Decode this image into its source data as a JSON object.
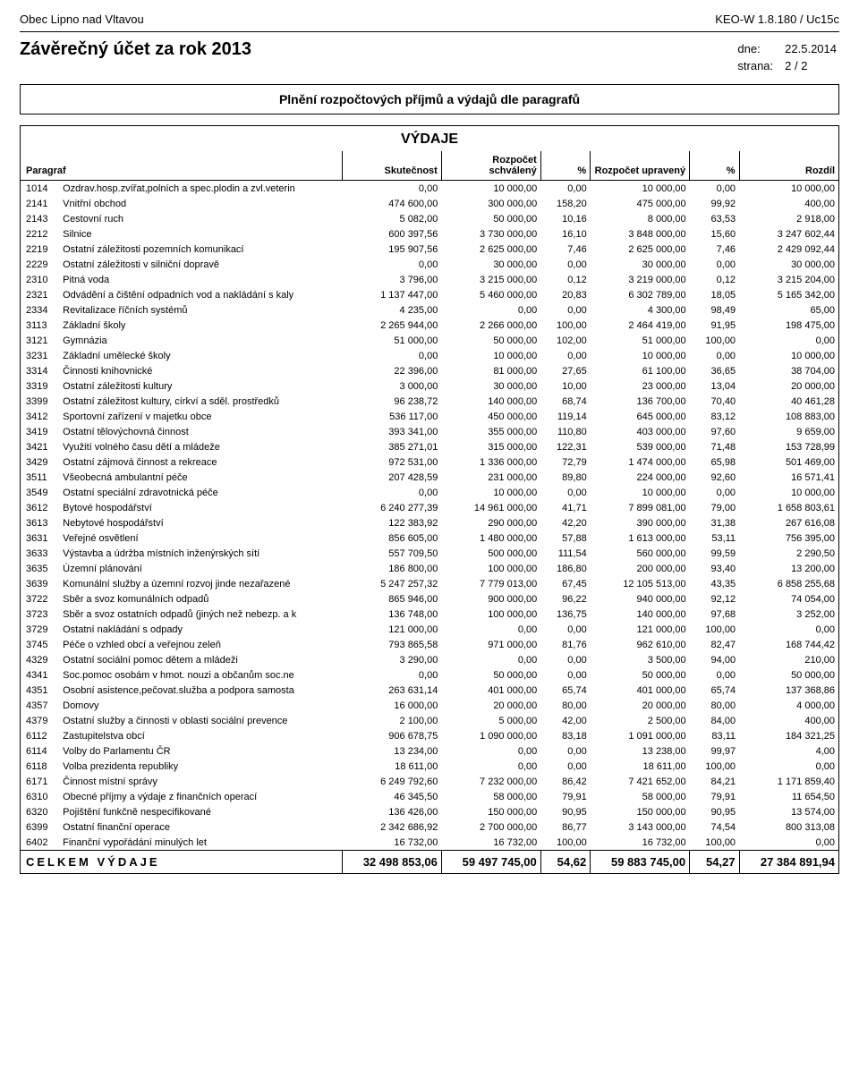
{
  "header": {
    "municipality": "Obec Lipno nad Vltavou",
    "system": "KEO-W 1.8.180 / Uc15c",
    "title": "Závěrečný účet za rok 2013",
    "date_label": "dne:",
    "date_value": "22.5.2014",
    "page_label": "strana:",
    "page_value": "2 / 2"
  },
  "section_title": "Plnění rozpočtových příjmů a výdajů dle paragrafů",
  "vydaje_title": "VÝDAJE",
  "columns": {
    "paragraf": "Paragraf",
    "skutecnost": "Skutečnost",
    "schvaleny": "Rozpočet schválený",
    "pct1": "%",
    "upraveny": "Rozpočet upravený",
    "pct2": "%",
    "rozdil": "Rozdíl"
  },
  "rows": [
    {
      "code": "1014",
      "label": "Ozdrav.hosp.zvířat,polních a spec.plodin a zvl.veterin",
      "skut": "0,00",
      "schv": "10 000,00",
      "pct1": "0,00",
      "upr": "10 000,00",
      "pct2": "0,00",
      "rozd": "10 000,00"
    },
    {
      "code": "2141",
      "label": "Vnitřní obchod",
      "skut": "474 600,00",
      "schv": "300 000,00",
      "pct1": "158,20",
      "upr": "475 000,00",
      "pct2": "99,92",
      "rozd": "400,00"
    },
    {
      "code": "2143",
      "label": "Cestovní ruch",
      "skut": "5 082,00",
      "schv": "50 000,00",
      "pct1": "10,16",
      "upr": "8 000,00",
      "pct2": "63,53",
      "rozd": "2 918,00"
    },
    {
      "code": "2212",
      "label": "Silnice",
      "skut": "600 397,56",
      "schv": "3 730 000,00",
      "pct1": "16,10",
      "upr": "3 848 000,00",
      "pct2": "15,60",
      "rozd": "3 247 602,44"
    },
    {
      "code": "2219",
      "label": "Ostatní záležitosti pozemních komunikací",
      "skut": "195 907,56",
      "schv": "2 625 000,00",
      "pct1": "7,46",
      "upr": "2 625 000,00",
      "pct2": "7,46",
      "rozd": "2 429 092,44"
    },
    {
      "code": "2229",
      "label": "Ostatní záležitosti v silniční dopravě",
      "skut": "0,00",
      "schv": "30 000,00",
      "pct1": "0,00",
      "upr": "30 000,00",
      "pct2": "0,00",
      "rozd": "30 000,00"
    },
    {
      "code": "2310",
      "label": "Pitná voda",
      "skut": "3 796,00",
      "schv": "3 215 000,00",
      "pct1": "0,12",
      "upr": "3 219 000,00",
      "pct2": "0,12",
      "rozd": "3 215 204,00"
    },
    {
      "code": "2321",
      "label": "Odvádění a čištění odpadních vod a nakládání s kaly",
      "skut": "1 137 447,00",
      "schv": "5 460 000,00",
      "pct1": "20,83",
      "upr": "6 302 789,00",
      "pct2": "18,05",
      "rozd": "5 165 342,00"
    },
    {
      "code": "2334",
      "label": "Revitalizace říčních systémů",
      "skut": "4 235,00",
      "schv": "0,00",
      "pct1": "0,00",
      "upr": "4 300,00",
      "pct2": "98,49",
      "rozd": "65,00"
    },
    {
      "code": "3113",
      "label": "Základní školy",
      "skut": "2 265 944,00",
      "schv": "2 266 000,00",
      "pct1": "100,00",
      "upr": "2 464 419,00",
      "pct2": "91,95",
      "rozd": "198 475,00"
    },
    {
      "code": "3121",
      "label": "Gymnázia",
      "skut": "51 000,00",
      "schv": "50 000,00",
      "pct1": "102,00",
      "upr": "51 000,00",
      "pct2": "100,00",
      "rozd": "0,00"
    },
    {
      "code": "3231",
      "label": "Základní umělecké školy",
      "skut": "0,00",
      "schv": "10 000,00",
      "pct1": "0,00",
      "upr": "10 000,00",
      "pct2": "0,00",
      "rozd": "10 000,00"
    },
    {
      "code": "3314",
      "label": "Činnosti knihovnické",
      "skut": "22 396,00",
      "schv": "81 000,00",
      "pct1": "27,65",
      "upr": "61 100,00",
      "pct2": "36,65",
      "rozd": "38 704,00"
    },
    {
      "code": "3319",
      "label": "Ostatní záležitosti kultury",
      "skut": "3 000,00",
      "schv": "30 000,00",
      "pct1": "10,00",
      "upr": "23 000,00",
      "pct2": "13,04",
      "rozd": "20 000,00"
    },
    {
      "code": "3399",
      "label": "Ostatní záležitost kultury, církví a sděl. prostředků",
      "skut": "96 238,72",
      "schv": "140 000,00",
      "pct1": "68,74",
      "upr": "136 700,00",
      "pct2": "70,40",
      "rozd": "40 461,28"
    },
    {
      "code": "3412",
      "label": "Sportovní zařízení v majetku obce",
      "skut": "536 117,00",
      "schv": "450 000,00",
      "pct1": "119,14",
      "upr": "645 000,00",
      "pct2": "83,12",
      "rozd": "108 883,00"
    },
    {
      "code": "3419",
      "label": "Ostatní tělovýchovná činnost",
      "skut": "393 341,00",
      "schv": "355 000,00",
      "pct1": "110,80",
      "upr": "403 000,00",
      "pct2": "97,60",
      "rozd": "9 659,00"
    },
    {
      "code": "3421",
      "label": "Využití volného času dětí a mládeže",
      "skut": "385 271,01",
      "schv": "315 000,00",
      "pct1": "122,31",
      "upr": "539 000,00",
      "pct2": "71,48",
      "rozd": "153 728,99"
    },
    {
      "code": "3429",
      "label": "Ostatní zájmová činnost a rekreace",
      "skut": "972 531,00",
      "schv": "1 336 000,00",
      "pct1": "72,79",
      "upr": "1 474 000,00",
      "pct2": "65,98",
      "rozd": "501 469,00"
    },
    {
      "code": "3511",
      "label": "Všeobecná ambulantní péče",
      "skut": "207 428,59",
      "schv": "231 000,00",
      "pct1": "89,80",
      "upr": "224 000,00",
      "pct2": "92,60",
      "rozd": "16 571,41"
    },
    {
      "code": "3549",
      "label": "Ostatní speciální zdravotnická péče",
      "skut": "0,00",
      "schv": "10 000,00",
      "pct1": "0,00",
      "upr": "10 000,00",
      "pct2": "0,00",
      "rozd": "10 000,00"
    },
    {
      "code": "3612",
      "label": "Bytové hospodářství",
      "skut": "6 240 277,39",
      "schv": "14 961 000,00",
      "pct1": "41,71",
      "upr": "7 899 081,00",
      "pct2": "79,00",
      "rozd": "1 658 803,61"
    },
    {
      "code": "3613",
      "label": "Nebytové hospodářství",
      "skut": "122 383,92",
      "schv": "290 000,00",
      "pct1": "42,20",
      "upr": "390 000,00",
      "pct2": "31,38",
      "rozd": "267 616,08"
    },
    {
      "code": "3631",
      "label": "Veřejné osvětlení",
      "skut": "856 605,00",
      "schv": "1 480 000,00",
      "pct1": "57,88",
      "upr": "1 613 000,00",
      "pct2": "53,11",
      "rozd": "756 395,00"
    },
    {
      "code": "3633",
      "label": "Výstavba a údržba místních inženýrských sítí",
      "skut": "557 709,50",
      "schv": "500 000,00",
      "pct1": "111,54",
      "upr": "560 000,00",
      "pct2": "99,59",
      "rozd": "2 290,50"
    },
    {
      "code": "3635",
      "label": "Územní plánování",
      "skut": "186 800,00",
      "schv": "100 000,00",
      "pct1": "186,80",
      "upr": "200 000,00",
      "pct2": "93,40",
      "rozd": "13 200,00"
    },
    {
      "code": "3639",
      "label": "Komunální služby a územní rozvoj jinde nezařazené",
      "skut": "5 247 257,32",
      "schv": "7 779 013,00",
      "pct1": "67,45",
      "upr": "12 105 513,00",
      "pct2": "43,35",
      "rozd": "6 858 255,68"
    },
    {
      "code": "3722",
      "label": "Sběr a svoz komunálních odpadů",
      "skut": "865 946,00",
      "schv": "900 000,00",
      "pct1": "96,22",
      "upr": "940 000,00",
      "pct2": "92,12",
      "rozd": "74 054,00"
    },
    {
      "code": "3723",
      "label": "Sběr a svoz ostatních odpadů (jiných než nebezp. a k",
      "skut": "136 748,00",
      "schv": "100 000,00",
      "pct1": "136,75",
      "upr": "140 000,00",
      "pct2": "97,68",
      "rozd": "3 252,00"
    },
    {
      "code": "3729",
      "label": "Ostatní nakládání s odpady",
      "skut": "121 000,00",
      "schv": "0,00",
      "pct1": "0,00",
      "upr": "121 000,00",
      "pct2": "100,00",
      "rozd": "0,00"
    },
    {
      "code": "3745",
      "label": "Péče o vzhled obcí a veřejnou zeleň",
      "skut": "793 865,58",
      "schv": "971 000,00",
      "pct1": "81,76",
      "upr": "962 610,00",
      "pct2": "82,47",
      "rozd": "168 744,42"
    },
    {
      "code": "4329",
      "label": "Ostatní sociální pomoc dětem a mládeži",
      "skut": "3 290,00",
      "schv": "0,00",
      "pct1": "0,00",
      "upr": "3 500,00",
      "pct2": "94,00",
      "rozd": "210,00"
    },
    {
      "code": "4341",
      "label": "Soc.pomoc osobám v hmot. nouzi a občanům soc.ne",
      "skut": "0,00",
      "schv": "50 000,00",
      "pct1": "0,00",
      "upr": "50 000,00",
      "pct2": "0,00",
      "rozd": "50 000,00"
    },
    {
      "code": "4351",
      "label": "Osobní asistence,pečovat.služba a podpora samosta",
      "skut": "263 631,14",
      "schv": "401 000,00",
      "pct1": "65,74",
      "upr": "401 000,00",
      "pct2": "65,74",
      "rozd": "137 368,86"
    },
    {
      "code": "4357",
      "label": "Domovy",
      "skut": "16 000,00",
      "schv": "20 000,00",
      "pct1": "80,00",
      "upr": "20 000,00",
      "pct2": "80,00",
      "rozd": "4 000,00"
    },
    {
      "code": "4379",
      "label": "Ostatní služby a činnosti v oblasti sociální prevence",
      "skut": "2 100,00",
      "schv": "5 000,00",
      "pct1": "42,00",
      "upr": "2 500,00",
      "pct2": "84,00",
      "rozd": "400,00"
    },
    {
      "code": "6112",
      "label": "Zastupitelstva obcí",
      "skut": "906 678,75",
      "schv": "1 090 000,00",
      "pct1": "83,18",
      "upr": "1 091 000,00",
      "pct2": "83,11",
      "rozd": "184 321,25"
    },
    {
      "code": "6114",
      "label": "Volby do Parlamentu ČR",
      "skut": "13 234,00",
      "schv": "0,00",
      "pct1": "0,00",
      "upr": "13 238,00",
      "pct2": "99,97",
      "rozd": "4,00"
    },
    {
      "code": "6118",
      "label": "Volba prezidenta republiky",
      "skut": "18 611,00",
      "schv": "0,00",
      "pct1": "0,00",
      "upr": "18 611,00",
      "pct2": "100,00",
      "rozd": "0,00"
    },
    {
      "code": "6171",
      "label": "Činnost místní správy",
      "skut": "6 249 792,60",
      "schv": "7 232 000,00",
      "pct1": "86,42",
      "upr": "7 421 652,00",
      "pct2": "84,21",
      "rozd": "1 171 859,40"
    },
    {
      "code": "6310",
      "label": "Obecné příjmy a výdaje z finančních operací",
      "skut": "46 345,50",
      "schv": "58 000,00",
      "pct1": "79,91",
      "upr": "58 000,00",
      "pct2": "79,91",
      "rozd": "11 654,50"
    },
    {
      "code": "6320",
      "label": "Pojištění funkčně nespecifikované",
      "skut": "136 426,00",
      "schv": "150 000,00",
      "pct1": "90,95",
      "upr": "150 000,00",
      "pct2": "90,95",
      "rozd": "13 574,00"
    },
    {
      "code": "6399",
      "label": "Ostatní finanční operace",
      "skut": "2 342 686,92",
      "schv": "2 700 000,00",
      "pct1": "86,77",
      "upr": "3 143 000,00",
      "pct2": "74,54",
      "rozd": "800 313,08"
    },
    {
      "code": "6402",
      "label": "Finanční vypořádání minulých let",
      "skut": "16 732,00",
      "schv": "16 732,00",
      "pct1": "100,00",
      "upr": "16 732,00",
      "pct2": "100,00",
      "rozd": "0,00"
    }
  ],
  "totals": {
    "label": "CELKEM VÝDAJE",
    "skut": "32 498 853,06",
    "schv": "59 497 745,00",
    "pct1": "54,62",
    "upr": "59 883 745,00",
    "pct2": "54,27",
    "rozd": "27 384 891,94"
  }
}
